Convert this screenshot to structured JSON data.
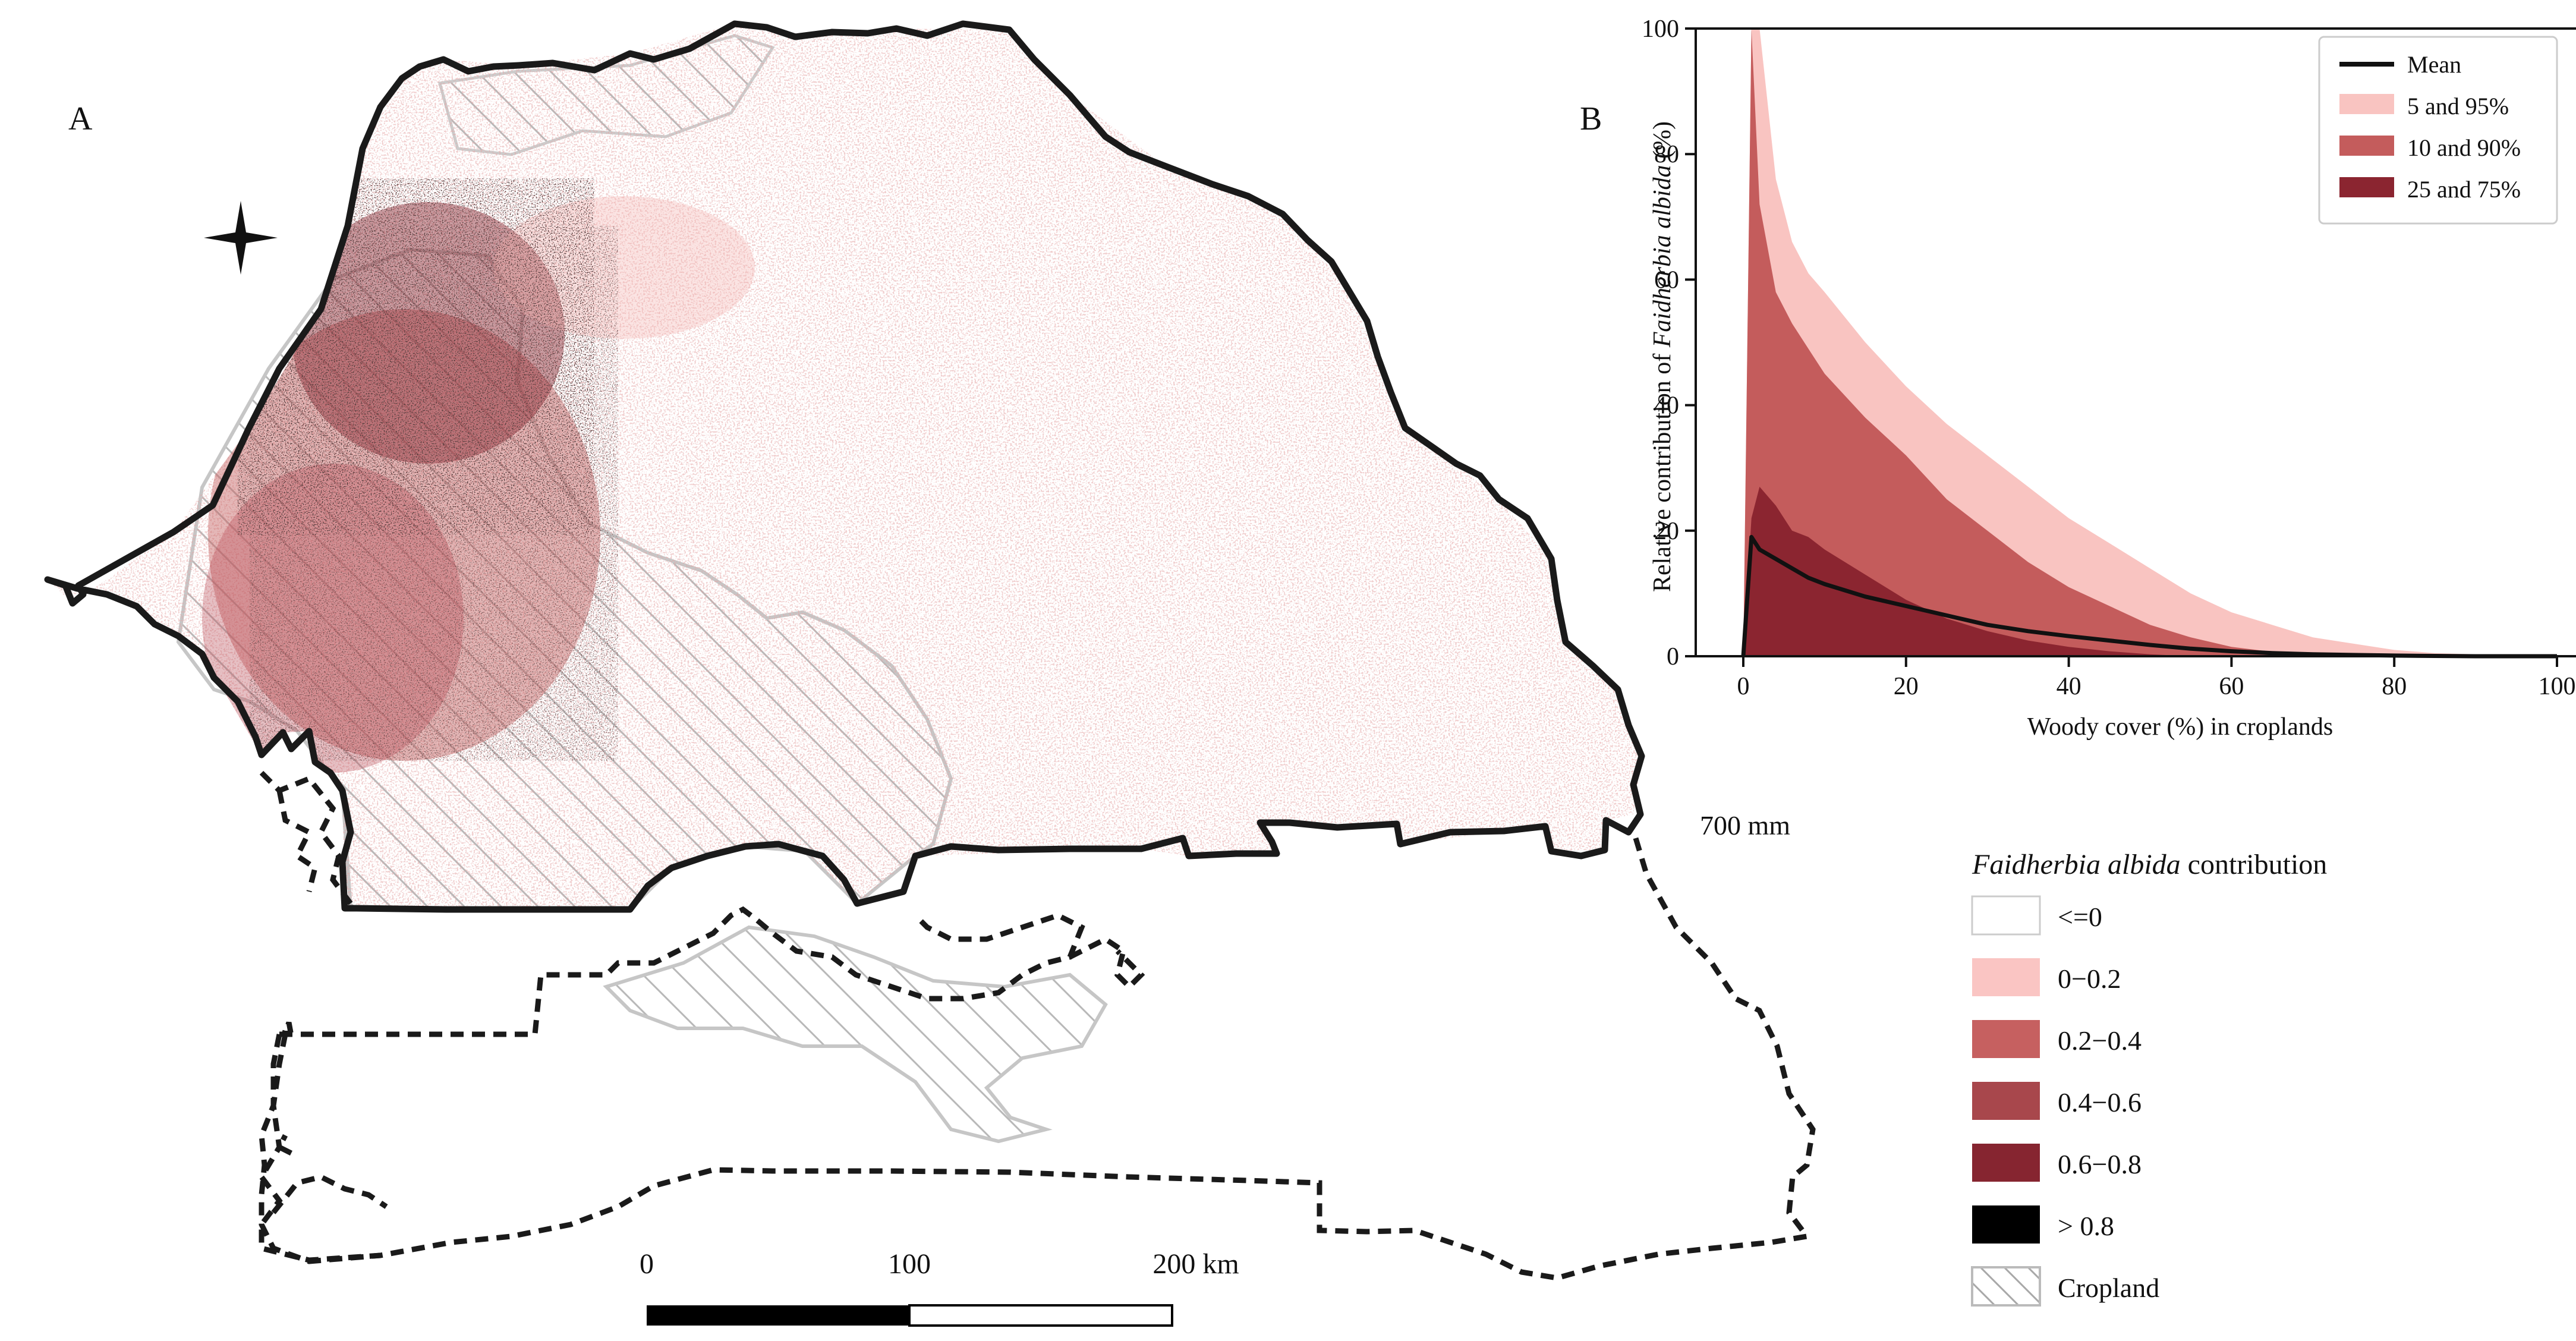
{
  "panel_a": {
    "label": "A",
    "isohyet_label": "700 mm",
    "scale_bar": {
      "ticks": [
        "0",
        "100",
        "200 km"
      ]
    }
  },
  "panel_b": {
    "label": "B",
    "ylabel_pre": "Relative contribution of ",
    "ylabel_species": "Faidherbia albida",
    "ylabel_post": " (%)",
    "xlabel": "Woody cover (%) in croplands",
    "x_ticks": [
      "0",
      "20",
      "40",
      "60",
      "80",
      "100"
    ],
    "y_ticks": [
      "0",
      "20",
      "40",
      "60",
      "80",
      "100"
    ],
    "legend": [
      {
        "label": "Mean",
        "kind": "line",
        "color": "#111111"
      },
      {
        "label": "5 and 95%",
        "kind": "patch",
        "color": "#f9c4c1"
      },
      {
        "label": "10 and 90%",
        "kind": "patch",
        "color": "#c45c5c"
      },
      {
        "label": "25 and 75%",
        "kind": "patch",
        "color": "#8b2530"
      }
    ]
  },
  "map_legend": {
    "title_species": "Faidherbia albida",
    "title_rest": " contribution",
    "items": [
      {
        "label": "<=0",
        "color": "#ffffff"
      },
      {
        "label": "0−0.2",
        "color": "#fac5c3"
      },
      {
        "label": "0.2−0.4",
        "color": "#c66060"
      },
      {
        "label": "0.4−0.6",
        "color": "#a8474c"
      },
      {
        "label": "0.6−0.8",
        "color": "#862530"
      },
      {
        "label": "> 0.8",
        "color": "#000000"
      },
      {
        "label": "Cropland",
        "color": "hatch"
      }
    ]
  },
  "chart_data": {
    "type": "area",
    "xlabel": "Woody cover (%) in croplands",
    "ylabel": "Relative contribution of Faidherbia albida (%)",
    "xlim": [
      0,
      100
    ],
    "ylim": [
      0,
      100
    ],
    "legend_position": "top-right",
    "x": [
      0,
      1,
      2,
      4,
      6,
      8,
      10,
      15,
      20,
      25,
      30,
      35,
      40,
      45,
      50,
      55,
      60,
      65,
      70,
      75,
      80,
      85,
      90,
      95,
      100
    ],
    "series": [
      {
        "name": "5 and 95%",
        "color": "#f9c4c1",
        "lower": [
          0,
          0,
          0,
          0,
          0,
          0,
          0,
          0,
          0,
          0,
          0,
          0,
          0,
          0,
          0,
          0,
          0,
          0,
          0,
          0,
          0,
          0,
          0,
          0,
          0
        ],
        "upper": [
          0,
          100,
          100,
          76,
          66,
          61,
          58,
          50,
          43,
          37,
          32,
          27,
          22,
          18,
          14,
          10,
          7,
          5,
          3,
          2,
          1,
          0.5,
          0.3,
          0.1,
          0
        ]
      },
      {
        "name": "10 and 90%",
        "color": "#c45c5c",
        "lower": [
          0,
          0,
          0,
          0,
          0,
          0,
          0,
          0,
          0,
          0,
          0,
          0,
          0,
          0,
          0,
          0,
          0,
          0,
          0,
          0,
          0,
          0,
          0,
          0,
          0
        ],
        "upper": [
          0,
          100,
          72,
          58,
          53,
          49,
          45,
          38,
          32,
          25,
          20,
          15,
          11,
          8,
          5,
          3,
          1.5,
          0.7,
          0.3,
          0.1,
          0,
          0,
          0,
          0,
          0
        ]
      },
      {
        "name": "25 and 75%",
        "color": "#8b2530",
        "lower": [
          0,
          0,
          0,
          0,
          0,
          0,
          0,
          0,
          0,
          0,
          0,
          0,
          0,
          0,
          0,
          0,
          0,
          0,
          0,
          0,
          0,
          0,
          0,
          0,
          0
        ],
        "upper": [
          0,
          22,
          27,
          24,
          20,
          19,
          17,
          13,
          9,
          6,
          4,
          2.5,
          1.5,
          0.8,
          0.3,
          0,
          0,
          0,
          0,
          0,
          0,
          0,
          0,
          0,
          0
        ]
      },
      {
        "name": "Mean",
        "color": "#111111",
        "values": [
          0,
          19,
          17,
          15.5,
          14,
          12.5,
          11.5,
          9.5,
          8,
          6.5,
          5,
          4,
          3.2,
          2.5,
          1.8,
          1.2,
          0.8,
          0.5,
          0.3,
          0.2,
          0.1,
          0.05,
          0,
          0,
          0
        ]
      }
    ]
  }
}
